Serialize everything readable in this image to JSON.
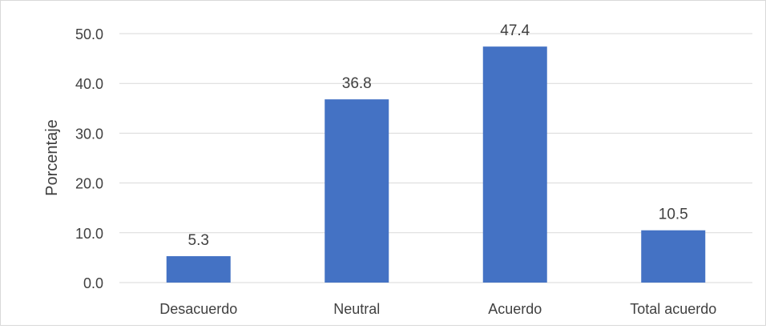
{
  "chart_data": {
    "type": "bar",
    "categories": [
      "Desacuerdo",
      "Neutral",
      "Acuerdo",
      "Total acuerdo"
    ],
    "values": [
      5.3,
      36.8,
      47.4,
      10.5
    ],
    "value_labels": [
      "5.3",
      "36.8",
      "47.4",
      "10.5"
    ],
    "ylabel": "Porcentaje",
    "ylim": [
      0,
      50
    ],
    "yticks": [
      "0.0",
      "10.0",
      "20.0",
      "30.0",
      "40.0",
      "50.0"
    ],
    "grid": true,
    "legend": "none",
    "bar_color": "#4472c4",
    "gridline_color": "#d9d9d9",
    "text_color": "#404040"
  }
}
